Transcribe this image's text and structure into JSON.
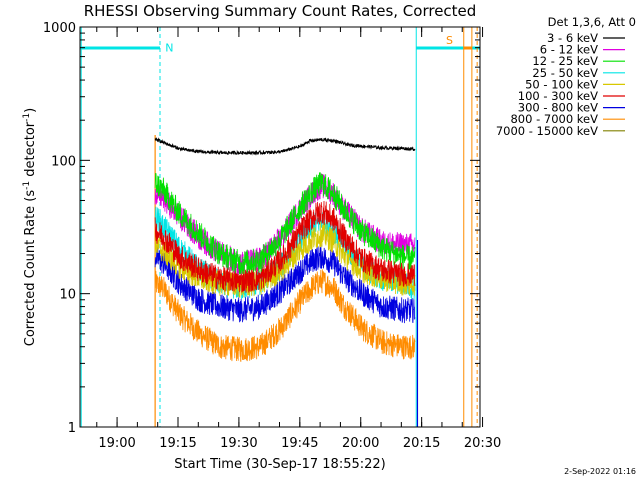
{
  "chart_data": {
    "type": "line",
    "title": "RHESSI Observing Summary Count Rates, Corrected",
    "xlabel": "Start Time (30-Sep-17 18:55:22)",
    "ylabel_main": "Corrected Count Rate (s",
    "ylabel_sup1": "-1",
    "ylabel_mid": " detector",
    "ylabel_sup2": "-1",
    "ylabel_end": ")",
    "yscale": "log",
    "ylim": [
      1,
      1000
    ],
    "xlim_min": [
      -4.5,
      94
    ],
    "ytick_labels": [
      "1",
      "10",
      "100",
      "1000"
    ],
    "yticks": [
      1,
      10,
      100,
      1000
    ],
    "xtick_labels": [
      "19:00",
      "19:15",
      "19:30",
      "19:45",
      "20:00",
      "20:15",
      "20:30"
    ],
    "xticks_min": [
      4.63,
      19.63,
      34.63,
      49.63,
      64.63,
      79.63,
      94.63
    ],
    "legend_header": "Det 1,3,6, Att 0",
    "legend_placement": "top-right",
    "footer_date": "2-Sep-2022 01:16",
    "annotations": [
      {
        "text": "N",
        "x_min": 17.5,
        "y": 700,
        "color": "#00e5e5"
      },
      {
        "text": "S",
        "x_min": 86.5,
        "y": 800,
        "color": "#ff8c00"
      }
    ],
    "night_intervals_min": [
      [
        -4.5,
        15.2
      ],
      [
        78.3,
        94.0
      ]
    ],
    "saa_markers_min": [
      90.0,
      92.0,
      93.3
    ],
    "data_start_min": 14.0,
    "data_end_min": 78.6,
    "series": [
      {
        "name": "3 - 6 keV",
        "color": "#000000",
        "x": [
          14,
          16,
          20,
          25,
          30,
          35,
          40,
          45,
          50,
          52,
          55,
          58,
          60,
          62,
          65,
          70,
          75,
          78
        ],
        "y": [
          145,
          136,
          122,
          116,
          114,
          114,
          114,
          116,
          128,
          140,
          143,
          140,
          135,
          130,
          128,
          124,
          123,
          121
        ]
      },
      {
        "name": "6 - 12 keV",
        "color": "#e000e0",
        "x": [
          14,
          16,
          20,
          25,
          30,
          35,
          40,
          45,
          50,
          53,
          55,
          58,
          60,
          65,
          70,
          75,
          78
        ],
        "y": [
          58,
          52,
          38,
          26,
          20,
          17,
          18,
          26,
          45,
          58,
          65,
          56,
          45,
          30,
          24,
          23,
          23
        ]
      },
      {
        "name": "12 - 25 keV",
        "color": "#00e000",
        "x": [
          14,
          16,
          20,
          25,
          30,
          35,
          40,
          45,
          50,
          53,
          55,
          58,
          60,
          65,
          70,
          75,
          78
        ],
        "y": [
          68,
          60,
          40,
          28,
          20,
          17,
          18,
          26,
          46,
          60,
          68,
          56,
          45,
          29,
          22,
          19,
          18
        ]
      },
      {
        "name": "25 - 50 keV",
        "color": "#00e5e5",
        "x": [
          14,
          16,
          20,
          25,
          30,
          35,
          40,
          45,
          50,
          53,
          55,
          58,
          60,
          65,
          70,
          75,
          78
        ],
        "y": [
          38,
          32,
          22,
          15,
          12,
          11,
          12,
          16,
          26,
          32,
          36,
          30,
          24,
          16,
          13,
          12,
          11
        ]
      },
      {
        "name": "50 - 100 keV",
        "color": "#d8c800",
        "x": [
          14,
          16,
          20,
          25,
          30,
          35,
          40,
          45,
          50,
          53,
          55,
          58,
          60,
          65,
          70,
          75,
          78
        ],
        "y": [
          24,
          21,
          16,
          13,
          12,
          11.5,
          12,
          15,
          22,
          26,
          28,
          25,
          20,
          15,
          13,
          12,
          12
        ]
      },
      {
        "name": "100 - 300 keV",
        "color": "#e00000",
        "x": [
          14,
          16,
          20,
          25,
          30,
          35,
          40,
          45,
          50,
          53,
          55,
          58,
          60,
          65,
          70,
          75,
          78
        ],
        "y": [
          30,
          27,
          19,
          15,
          13,
          12.5,
          13,
          18,
          30,
          38,
          42,
          36,
          28,
          18,
          15,
          14,
          14
        ]
      },
      {
        "name": "300 - 800 keV",
        "color": "#0000e0",
        "x": [
          14,
          16,
          20,
          25,
          30,
          35,
          40,
          45,
          50,
          53,
          55,
          58,
          60,
          65,
          70,
          75,
          78
        ],
        "y": [
          19,
          17,
          12,
          9,
          8,
          7.5,
          8,
          10.5,
          15,
          18,
          19,
          17,
          14,
          10,
          8,
          7.5,
          7.5
        ]
      },
      {
        "name": "800 - 7000 keV",
        "color": "#ff8c00",
        "x": [
          14,
          16,
          20,
          25,
          30,
          35,
          40,
          45,
          50,
          53,
          55,
          58,
          60,
          65,
          70,
          75,
          78
        ],
        "y": [
          12,
          11,
          7,
          5,
          4,
          3.8,
          4,
          5.5,
          9,
          11.5,
          12.5,
          11,
          8.5,
          5.5,
          4.3,
          4,
          4
        ]
      },
      {
        "name": "7000 - 15000 keV",
        "color": "#808000",
        "x": [],
        "y": []
      }
    ]
  }
}
